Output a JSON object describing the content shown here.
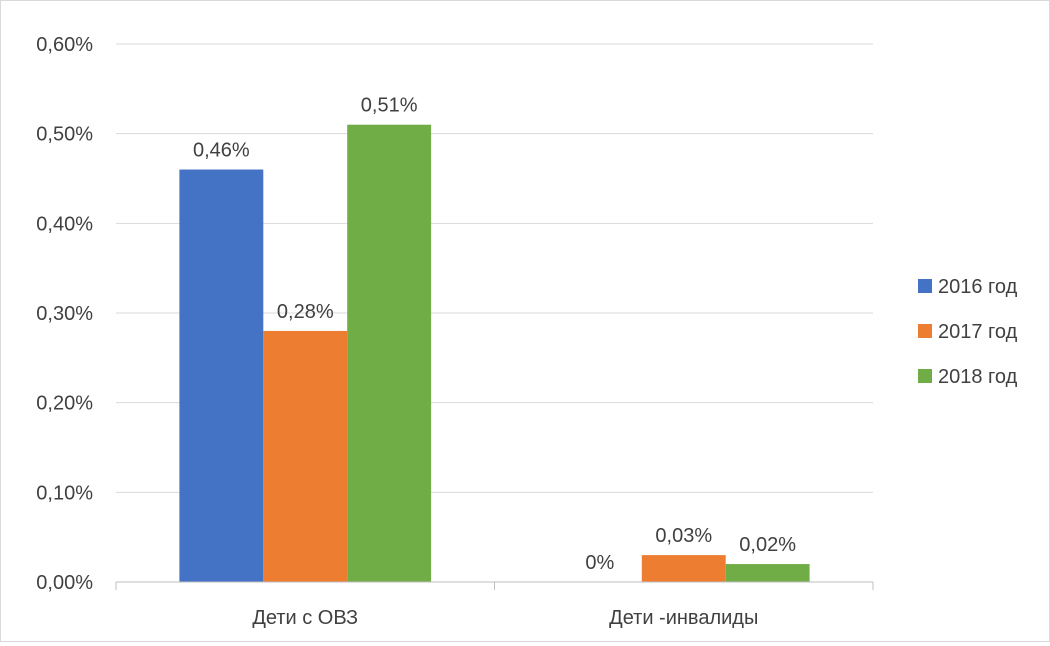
{
  "chart_data": {
    "type": "bar",
    "categories": [
      "Дети с ОВЗ",
      "Дети -инвалиды"
    ],
    "series": [
      {
        "name": "2016 год",
        "color": "#4472C4",
        "values": [
          0.46,
          0
        ],
        "labels": [
          "0,46%",
          "0%"
        ]
      },
      {
        "name": "2017 год",
        "color": "#ED7D31",
        "values": [
          0.28,
          0.03
        ],
        "labels": [
          "0,28%",
          "0,03%"
        ]
      },
      {
        "name": "2018 год",
        "color": "#70AD47",
        "values": [
          0.51,
          0.02
        ],
        "labels": [
          "0,51%",
          "0,02%"
        ]
      }
    ],
    "ylim": [
      0,
      0.6
    ],
    "yticks": [
      0,
      0.1,
      0.2,
      0.3,
      0.4,
      0.5,
      0.6
    ],
    "ytick_labels": [
      "0,00%",
      "0,10%",
      "0,20%",
      "0,30%",
      "0,40%",
      "0,50%",
      "0,60%"
    ],
    "grid": true,
    "legend_position": "right",
    "title": "",
    "xlabel": "",
    "ylabel": ""
  }
}
